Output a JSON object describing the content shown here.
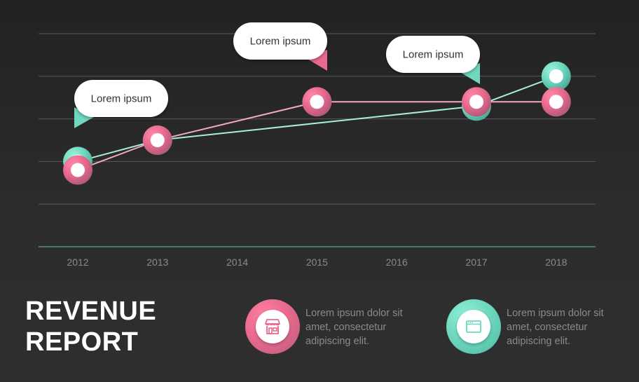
{
  "chart_data": {
    "type": "line",
    "categories": [
      "2012",
      "2013",
      "2014",
      "2015",
      "2016",
      "2017",
      "2018"
    ],
    "ylim": [
      0,
      5
    ],
    "grid": true,
    "series": [
      {
        "color": "#e96a8e",
        "points": [
          {
            "x": "2012",
            "y": 1.8
          },
          {
            "x": "2013",
            "y": 2.5
          },
          {
            "x": "2015",
            "y": 3.4
          },
          {
            "x": "2017",
            "y": 3.4
          },
          {
            "x": "2018",
            "y": 3.4
          }
        ]
      },
      {
        "color": "#6fd8bf",
        "points": [
          {
            "x": "2012",
            "y": 2.0
          },
          {
            "x": "2013",
            "y": 2.5
          },
          {
            "x": "2017",
            "y": 3.3
          },
          {
            "x": "2018",
            "y": 4.0
          }
        ]
      }
    ],
    "annotations": [
      {
        "text": "Lorem ipsum",
        "x": "2012",
        "color": "#6fd8bf"
      },
      {
        "text": "Lorem ipsum",
        "x": "2015",
        "color": "#e96a8e"
      },
      {
        "text": "Lorem ipsum",
        "x": "2017",
        "color": "#6fd8bf"
      }
    ]
  },
  "title": {
    "line1": "REVENUE",
    "line2": "REPORT"
  },
  "legend": [
    {
      "color": "#e96a8e",
      "icon": "store-icon",
      "text": "Lorem ipsum dolor sit amet, consectetur adipiscing elit."
    },
    {
      "color": "#6fd8bf",
      "icon": "browser-window-icon",
      "text": "Lorem ipsum dolor sit amet, consectetur adipiscing elit."
    }
  ]
}
